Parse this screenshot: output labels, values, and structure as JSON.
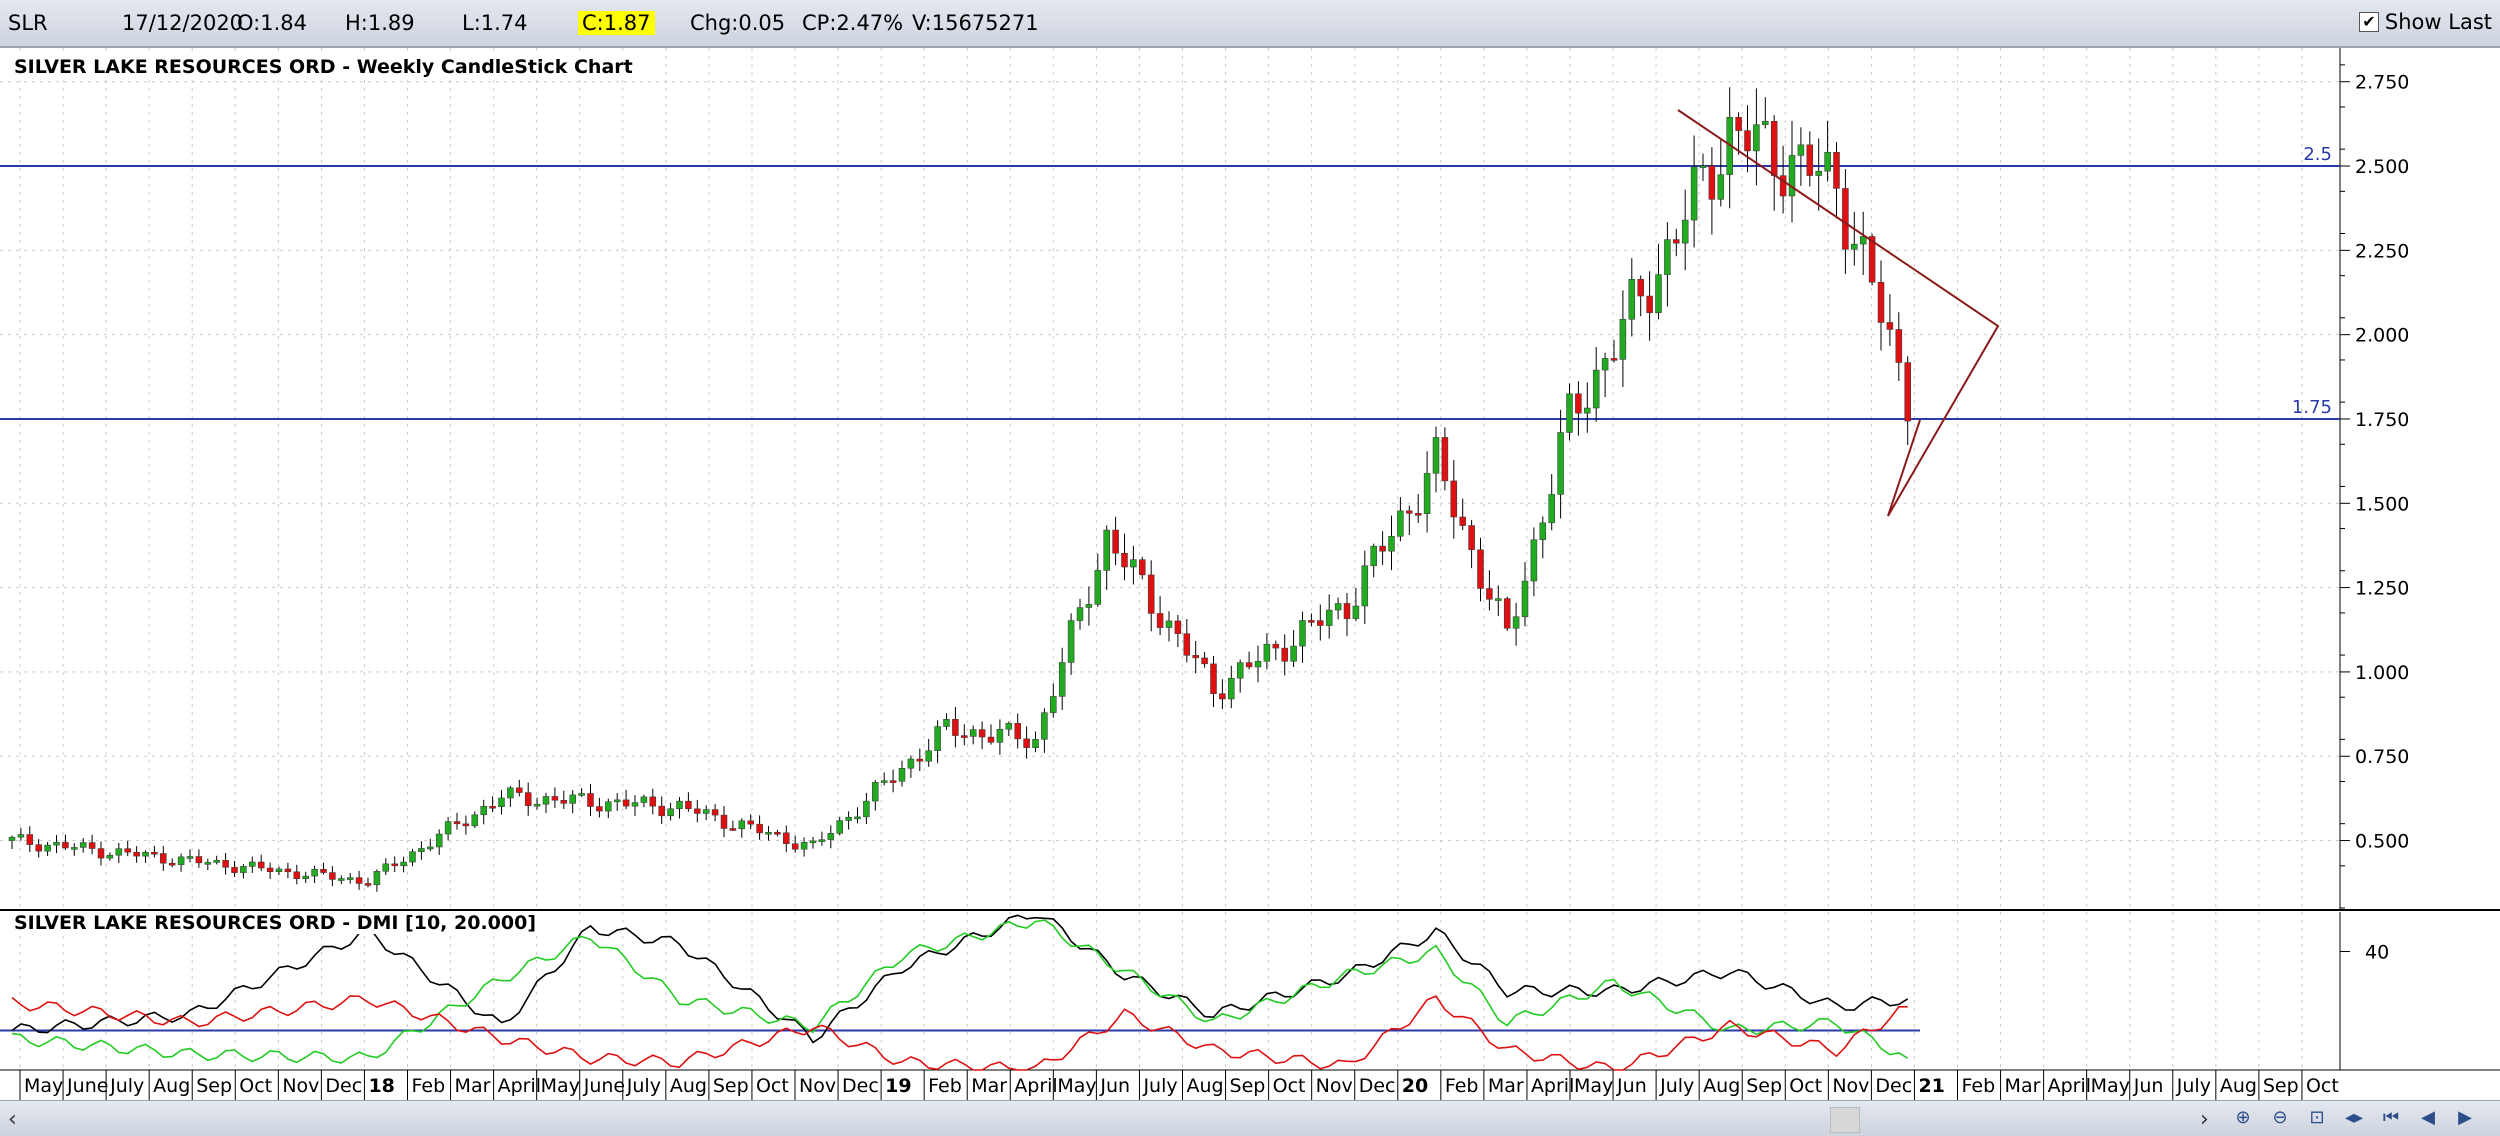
{
  "header": {
    "symbol": "SLR",
    "date": "17/12/2020",
    "open": "O:1.84",
    "high": "H:1.89",
    "low": "L:1.74",
    "close": "C:1.87",
    "change": "Chg:0.05",
    "change_pct": "CP:2.47%",
    "volume": "V:15675271",
    "show_last_label": "Show Last",
    "show_last_checked": true
  },
  "chart_data": [
    {
      "type": "candlestick",
      "title": "SILVER LAKE RESOURCES ORD - Weekly CandleStick Chart",
      "interval": "weekly",
      "ylim": [
        0.3,
        2.85
      ],
      "yticks": [
        0.5,
        0.75,
        1.0,
        1.25,
        1.5,
        1.75,
        2.0,
        2.25,
        2.5,
        2.75
      ],
      "ytick_labels": [
        "0.500",
        "0.750",
        "1.000",
        "1.250",
        "1.500",
        "1.750",
        "2.000",
        "2.250",
        "2.500",
        "2.750"
      ],
      "horizontal_lines": [
        {
          "value": 2.5,
          "label": "2.5",
          "color": "#2b3aa8"
        },
        {
          "value": 1.75,
          "label": "1.75",
          "color": "#2b3aa8"
        }
      ],
      "triangle": {
        "color": "#8b1a1a",
        "points": [
          [
            2.85,
            2.85
          ],
          [
            2.18,
            2.18
          ],
          [
            1.6,
            1.6
          ]
        ]
      },
      "up_color": "#22aa22",
      "down_color": "#dd1111",
      "key_points": [
        {
          "week": 0,
          "close": 0.5
        },
        {
          "week": 40,
          "close": 0.38
        },
        {
          "week": 55,
          "close": 0.63
        },
        {
          "week": 75,
          "close": 0.6
        },
        {
          "week": 90,
          "close": 0.48
        },
        {
          "week": 105,
          "close": 0.83
        },
        {
          "week": 115,
          "close": 0.8
        },
        {
          "week": 123,
          "close": 1.4
        },
        {
          "week": 135,
          "close": 0.95
        },
        {
          "week": 150,
          "close": 1.2
        },
        {
          "week": 160,
          "close": 1.62
        },
        {
          "week": 168,
          "close": 1.1
        },
        {
          "week": 175,
          "close": 1.75
        },
        {
          "week": 185,
          "close": 2.2
        },
        {
          "week": 193,
          "close": 2.6
        },
        {
          "week": 205,
          "close": 2.45
        },
        {
          "week": 213,
          "close": 1.82
        }
      ],
      "total_weeks": 214
    },
    {
      "type": "line",
      "title": "SILVER LAKE RESOURCES ORD - DMI [10, 20.000]",
      "ylim": [
        10,
        50
      ],
      "yticks": [
        40
      ],
      "ytick_labels": [
        "40"
      ],
      "horizontal_lines": [
        {
          "value": 20,
          "color": "#2b3aa8"
        }
      ],
      "series": [
        {
          "color": "#000000",
          "points": [
            [
              0,
              20
            ],
            [
              20,
              24
            ],
            [
              40,
              45
            ],
            [
              55,
              21
            ],
            [
              65,
              46
            ],
            [
              75,
              42
            ],
            [
              90,
              18
            ],
            [
              100,
              36
            ],
            [
              115,
              50
            ],
            [
              125,
              34
            ],
            [
              135,
              24
            ],
            [
              150,
              34
            ],
            [
              160,
              45
            ],
            [
              168,
              30
            ],
            [
              180,
              30
            ],
            [
              193,
              35
            ],
            [
              205,
              26
            ],
            [
              213,
              28
            ]
          ]
        },
        {
          "color": "#22cc22",
          "points": [
            [
              0,
              18
            ],
            [
              20,
              14
            ],
            [
              40,
              13
            ],
            [
              55,
              33
            ],
            [
              65,
              44
            ],
            [
              75,
              28
            ],
            [
              90,
              21
            ],
            [
              100,
              39
            ],
            [
              115,
              48
            ],
            [
              125,
              35
            ],
            [
              135,
              22
            ],
            [
              150,
              34
            ],
            [
              160,
              40
            ],
            [
              168,
              22
            ],
            [
              180,
              32
            ],
            [
              193,
              20
            ],
            [
              205,
              22
            ],
            [
              213,
              13
            ]
          ]
        },
        {
          "color": "#dd1111",
          "points": [
            [
              0,
              27
            ],
            [
              20,
              22
            ],
            [
              40,
              28
            ],
            [
              55,
              18
            ],
            [
              65,
              13
            ],
            [
              75,
              12
            ],
            [
              90,
              21
            ],
            [
              100,
              12
            ],
            [
              115,
              10
            ],
            [
              125,
              24
            ],
            [
              135,
              15
            ],
            [
              150,
              11
            ],
            [
              160,
              28
            ],
            [
              168,
              15
            ],
            [
              180,
              10
            ],
            [
              193,
              21
            ],
            [
              205,
              15
            ],
            [
              213,
              26
            ]
          ]
        }
      ]
    }
  ],
  "xaxis": {
    "labels": [
      "May",
      "June",
      "July",
      "Aug",
      "Sep",
      "Oct",
      "Nov",
      "Dec",
      "18",
      "Feb",
      "Mar",
      "April",
      "May",
      "June",
      "July",
      "Aug",
      "Sep",
      "Oct",
      "Nov",
      "Dec",
      "19",
      "Feb",
      "Mar",
      "April",
      "May",
      "Jun",
      "July",
      "Aug",
      "Sep",
      "Oct",
      "Nov",
      "Dec",
      "20",
      "Feb",
      "Mar",
      "April",
      "May",
      "Jun",
      "July",
      "Aug",
      "Sep",
      "Oct",
      "Nov",
      "Dec",
      "21",
      "Feb",
      "Mar",
      "April",
      "May",
      "Jun",
      "July",
      "Aug",
      "Sep",
      "Oct"
    ],
    "bold": [
      "18",
      "19",
      "20",
      "21"
    ]
  }
}
